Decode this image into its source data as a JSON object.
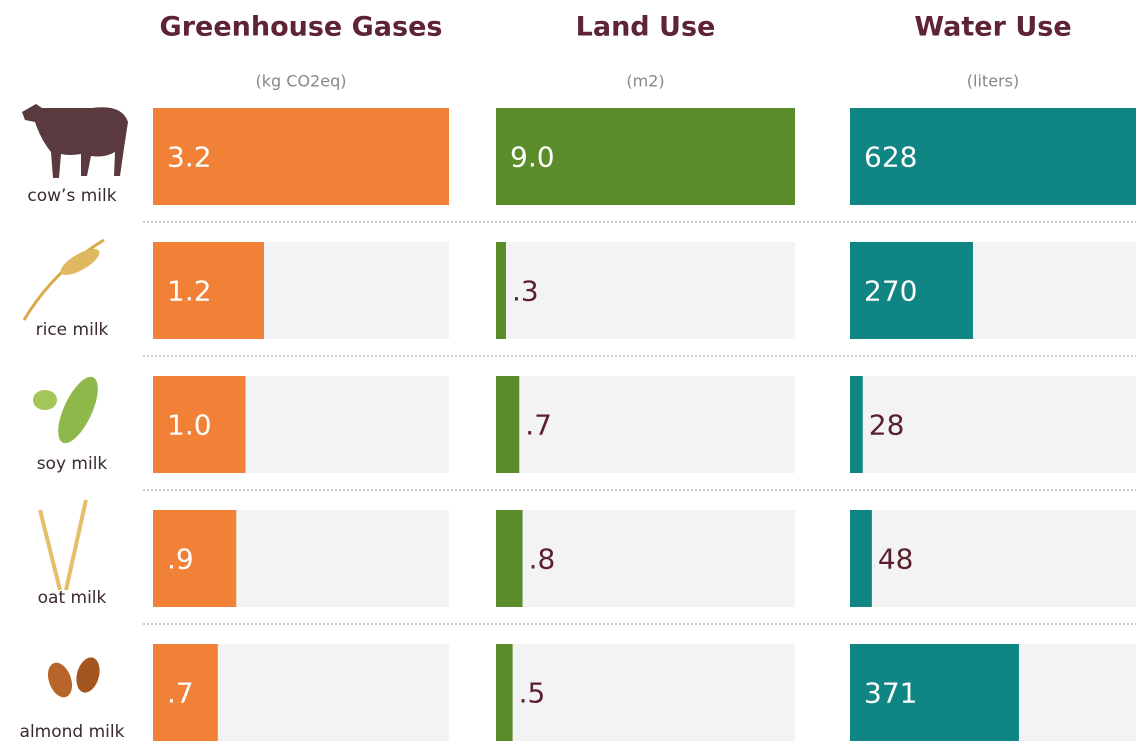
{
  "chart_data": {
    "type": "bar",
    "categories": [
      "cow’s milk",
      "rice milk",
      "soy milk",
      "oat milk",
      "almond milk"
    ],
    "series": [
      {
        "name": "Greenhouse Gases",
        "unit": "(kg CO2eq)",
        "color": "#f08136",
        "values": [
          3.2,
          1.2,
          1.0,
          0.9,
          0.7
        ],
        "value_labels": [
          "3.2",
          "1.2",
          "1.0",
          ".9",
          ".7"
        ],
        "xlim": [
          0,
          3.2
        ]
      },
      {
        "name": "Land Use",
        "unit": "(m2)",
        "color": "#5b8c2a",
        "values": [
          9.0,
          0.3,
          0.7,
          0.8,
          0.5
        ],
        "value_labels": [
          "9.0",
          ".3",
          ".7",
          ".8",
          ".5"
        ],
        "xlim": [
          0,
          9.0
        ]
      },
      {
        "name": "Water Use",
        "unit": "(liters)",
        "color": "#0f8584",
        "values": [
          628,
          270,
          28,
          48,
          371
        ],
        "xlim": [
          0,
          628
        ]
      }
    ]
  }
}
